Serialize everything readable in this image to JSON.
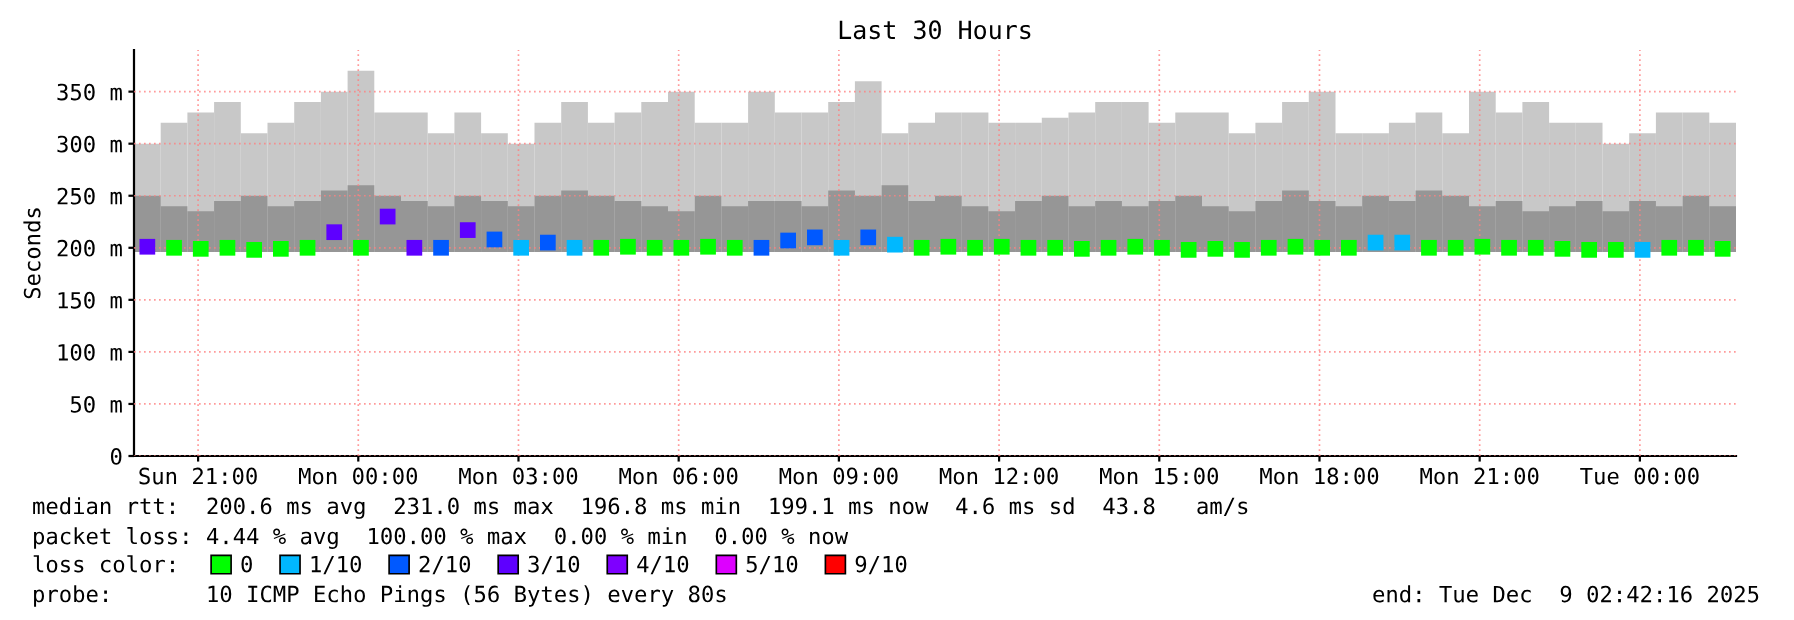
{
  "chart_data": {
    "type": "bar",
    "title": "Last 30 Hours",
    "ylabel": "Seconds",
    "legend_title": "loss color:",
    "x": [
      "2025-12-07T20:03",
      "2025-12-07T20:33",
      "2025-12-07T21:03",
      "2025-12-07T21:33",
      "2025-12-07T22:03",
      "2025-12-07T22:33",
      "2025-12-07T23:03",
      "2025-12-07T23:33",
      "2025-12-08T00:03",
      "2025-12-08T00:33",
      "2025-12-08T01:03",
      "2025-12-08T01:33",
      "2025-12-08T02:03",
      "2025-12-08T02:33",
      "2025-12-08T03:03",
      "2025-12-08T03:33",
      "2025-12-08T04:03",
      "2025-12-08T04:33",
      "2025-12-08T05:03",
      "2025-12-08T05:33",
      "2025-12-08T06:03",
      "2025-12-08T06:33",
      "2025-12-08T07:03",
      "2025-12-08T07:33",
      "2025-12-08T08:03",
      "2025-12-08T08:33",
      "2025-12-08T09:03",
      "2025-12-08T09:33",
      "2025-12-08T10:03",
      "2025-12-08T10:33",
      "2025-12-08T11:03",
      "2025-12-08T11:33",
      "2025-12-08T12:03",
      "2025-12-08T12:33",
      "2025-12-08T13:03",
      "2025-12-08T13:33",
      "2025-12-08T14:03",
      "2025-12-08T14:33",
      "2025-12-08T15:03",
      "2025-12-08T15:33",
      "2025-12-08T16:03",
      "2025-12-08T16:33",
      "2025-12-08T17:03",
      "2025-12-08T17:33",
      "2025-12-08T18:03",
      "2025-12-08T18:33",
      "2025-12-08T19:03",
      "2025-12-08T19:33",
      "2025-12-08T20:03",
      "2025-12-08T20:33",
      "2025-12-08T21:03",
      "2025-12-08T21:33",
      "2025-12-08T22:03",
      "2025-12-08T22:33",
      "2025-12-08T23:03",
      "2025-12-08T23:33",
      "2025-12-09T00:03",
      "2025-12-09T00:33",
      "2025-12-09T01:03",
      "2025-12-09T01:33"
    ],
    "series": [
      {
        "color": "#c8c8c8",
        "base": [
          196,
          196,
          196,
          196,
          196,
          196,
          196,
          196,
          196,
          196,
          196,
          196,
          196,
          196,
          196,
          196,
          196,
          196,
          196,
          196,
          196,
          196,
          196,
          196,
          196,
          196,
          196,
          196,
          196,
          196,
          196,
          196,
          196,
          196,
          196,
          196,
          196,
          196,
          196,
          196,
          196,
          196,
          196,
          196,
          196,
          196,
          196,
          196,
          196,
          196,
          196,
          196,
          196,
          196,
          196,
          196,
          196,
          196,
          196,
          196
        ],
        "values": [
          104,
          124,
          134,
          144,
          114,
          124,
          144,
          154,
          174,
          134,
          134,
          114,
          134,
          114,
          104,
          124,
          144,
          124,
          134,
          144,
          154,
          124,
          124,
          154,
          134,
          134,
          144,
          164,
          114,
          124,
          134,
          134,
          124,
          124,
          129,
          134,
          144,
          144,
          124,
          134,
          134,
          114,
          124,
          144,
          154,
          114,
          114,
          124,
          134,
          114,
          154,
          134,
          144,
          124,
          124,
          104,
          114,
          134,
          134,
          124
        ]
      },
      {
        "color": "#969696",
        "base": [
          196,
          196,
          196,
          196,
          196,
          196,
          196,
          196,
          196,
          196,
          196,
          196,
          196,
          196,
          196,
          196,
          196,
          196,
          196,
          196,
          196,
          196,
          196,
          196,
          196,
          196,
          196,
          196,
          196,
          196,
          196,
          196,
          196,
          196,
          196,
          196,
          196,
          196,
          196,
          196,
          196,
          196,
          196,
          196,
          196,
          196,
          196,
          196,
          196,
          196,
          196,
          196,
          196,
          196,
          196,
          196,
          196,
          196,
          196,
          196
        ],
        "values": [
          54,
          44,
          39,
          49,
          54,
          44,
          49,
          59,
          64,
          54,
          49,
          44,
          54,
          49,
          44,
          54,
          59,
          54,
          49,
          44,
          39,
          54,
          44,
          49,
          49,
          44,
          59,
          54,
          64,
          49,
          54,
          44,
          39,
          49,
          54,
          44,
          49,
          44,
          49,
          54,
          44,
          39,
          49,
          59,
          49,
          44,
          54,
          49,
          59,
          54,
          44,
          49,
          39,
          44,
          49,
          39,
          49,
          44,
          54,
          44
        ]
      },
      {
        "type": "scatter",
        "name": "0",
        "color": "#00ff00",
        "x": [
          "2025-12-07T20:33",
          "2025-12-07T21:03",
          "2025-12-07T21:33",
          "2025-12-07T22:03",
          "2025-12-07T22:33",
          "2025-12-07T23:03",
          "2025-12-08T00:03",
          "2025-12-08T04:33",
          "2025-12-08T05:03",
          "2025-12-08T05:33",
          "2025-12-08T06:03",
          "2025-12-08T06:33",
          "2025-12-08T07:03",
          "2025-12-08T10:33",
          "2025-12-08T11:03",
          "2025-12-08T11:33",
          "2025-12-08T12:03",
          "2025-12-08T12:33",
          "2025-12-08T13:03",
          "2025-12-08T13:33",
          "2025-12-08T14:03",
          "2025-12-08T14:33",
          "2025-12-08T15:03",
          "2025-12-08T15:33",
          "2025-12-08T16:03",
          "2025-12-08T16:33",
          "2025-12-08T17:03",
          "2025-12-08T17:33",
          "2025-12-08T18:03",
          "2025-12-08T18:33",
          "2025-12-08T20:03",
          "2025-12-08T20:33",
          "2025-12-08T21:03",
          "2025-12-08T21:33",
          "2025-12-08T22:03",
          "2025-12-08T22:33",
          "2025-12-08T23:03",
          "2025-12-08T23:33",
          "2025-12-09T00:33",
          "2025-12-09T01:03",
          "2025-12-09T01:33"
        ],
        "values": [
          200,
          199,
          200,
          198,
          199,
          200,
          200,
          200,
          201,
          200,
          200,
          201,
          200,
          200,
          201,
          200,
          201,
          200,
          200,
          199,
          200,
          201,
          200,
          198,
          199,
          198,
          200,
          201,
          200,
          200,
          200,
          200,
          201,
          200,
          200,
          199,
          198,
          198,
          200,
          200,
          199
        ]
      },
      {
        "type": "scatter",
        "name": "1/10",
        "color": "#00b8ff",
        "x": [
          "2025-12-08T03:03",
          "2025-12-08T04:03",
          "2025-12-08T09:03",
          "2025-12-08T10:03",
          "2025-12-08T19:03",
          "2025-12-08T19:33",
          "2025-12-09T00:03"
        ],
        "values": [
          200,
          200,
          200,
          203,
          205,
          205,
          198
        ]
      },
      {
        "type": "scatter",
        "name": "2/10",
        "color": "#0059ff",
        "x": [
          "2025-12-08T01:33",
          "2025-12-08T02:33",
          "2025-12-08T03:33",
          "2025-12-08T07:33",
          "2025-12-08T08:03",
          "2025-12-08T08:33",
          "2025-12-08T09:33"
        ],
        "values": [
          200,
          208,
          205,
          200,
          207,
          210,
          210
        ]
      },
      {
        "type": "scatter",
        "name": "3/10",
        "color": "#5e00ff",
        "x": [
          "2025-12-07T20:03",
          "2025-12-07T23:33",
          "2025-12-08T00:33",
          "2025-12-08T01:03",
          "2025-12-08T02:03"
        ],
        "values": [
          201,
          215,
          230,
          200,
          217
        ]
      },
      {
        "type": "scatter",
        "name": "4/10",
        "color": "#7e00ff",
        "values": [
          null,
          null,
          null,
          null,
          null,
          null,
          null,
          null,
          null,
          null,
          null,
          null,
          null,
          null,
          null,
          null,
          null,
          null,
          null,
          null,
          null,
          null,
          null,
          null,
          null,
          null,
          null,
          null,
          null,
          null,
          null,
          null,
          null,
          null,
          null,
          null,
          null,
          null,
          null,
          null,
          null,
          null,
          null,
          null,
          null,
          null,
          null,
          null,
          null,
          null,
          null,
          null,
          null,
          null,
          null,
          null,
          null,
          null,
          null,
          null
        ]
      },
      {
        "type": "scatter",
        "name": "5/10",
        "color": "#dd00ff",
        "values": [
          null,
          null,
          null,
          null,
          null,
          null,
          null,
          null,
          null,
          null,
          null,
          null,
          null,
          null,
          null,
          null,
          null,
          null,
          null,
          null,
          null,
          null,
          null,
          null,
          null,
          null,
          null,
          null,
          null,
          null,
          null,
          null,
          null,
          null,
          null,
          null,
          null,
          null,
          null,
          null,
          null,
          null,
          null,
          null,
          null,
          null,
          null,
          null,
          null,
          null,
          null,
          null,
          null,
          null,
          null,
          null,
          null,
          null,
          null,
          null
        ]
      },
      {
        "type": "scatter",
        "name": "9/10",
        "color": "#ff0000",
        "values": [
          null,
          null,
          null,
          null,
          null,
          null,
          null,
          null,
          null,
          null,
          null,
          null,
          null,
          null,
          null,
          null,
          null,
          null,
          null,
          null,
          null,
          null,
          null,
          null,
          null,
          null,
          null,
          null,
          null,
          null,
          null,
          null,
          null,
          null,
          null,
          null,
          null,
          null,
          null,
          null,
          null,
          null,
          null,
          null,
          null,
          null,
          null,
          null,
          null,
          null,
          null,
          null,
          null,
          null,
          null,
          null,
          null,
          null,
          null,
          null
        ]
      }
    ],
    "marker": "square",
    "xlim": [
      "2025-12-07T19:48",
      "2025-12-09T01:48"
    ],
    "xticks": [
      {
        "value": "2025-12-07T21:00",
        "label": "Sun 21:00"
      },
      {
        "value": "2025-12-08T00:00",
        "label": "Mon 00:00"
      },
      {
        "value": "2025-12-08T03:00",
        "label": "Mon 03:00"
      },
      {
        "value": "2025-12-08T06:00",
        "label": "Mon 06:00"
      },
      {
        "value": "2025-12-08T09:00",
        "label": "Mon 09:00"
      },
      {
        "value": "2025-12-08T12:00",
        "label": "Mon 12:00"
      },
      {
        "value": "2025-12-08T15:00",
        "label": "Mon 15:00"
      },
      {
        "value": "2025-12-08T18:00",
        "label": "Mon 18:00"
      },
      {
        "value": "2025-12-08T21:00",
        "label": "Mon 21:00"
      },
      {
        "value": "2025-12-09T00:00",
        "label": "Tue 00:00"
      }
    ],
    "ylim": [
      0,
      390
    ],
    "yticks": [
      0,
      {
        "value": 50,
        "label": "50 m"
      },
      {
        "value": 100,
        "label": "100 m"
      },
      {
        "value": 150,
        "label": "150 m"
      },
      {
        "value": 200,
        "label": "200 m"
      },
      {
        "value": 250,
        "label": "250 m"
      },
      {
        "value": 300,
        "label": "300 m"
      },
      {
        "value": 350,
        "label": "350 m"
      }
    ],
    "grid": true,
    "legend": "bottom",
    "annotations": [
      "median rtt:  200.6 ms avg  231.0 ms max  196.8 ms min  199.1 ms now  4.6 ms sd  43.8   am/s",
      "packet loss: 4.44 % avg  100.00 % max  0.00 % min  0.00 % now",
      "probe:       10 ICMP Echo Pings (56 Bytes) every 80s",
      "end: Tue Dec  9 02:42:16 2025"
    ]
  }
}
